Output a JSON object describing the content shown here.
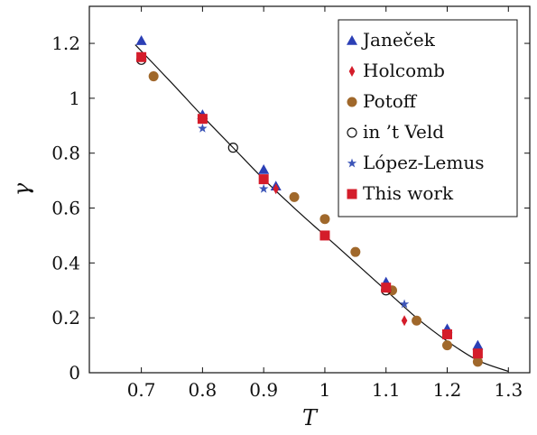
{
  "chart_data": {
    "type": "scatter",
    "xlabel": "T",
    "ylabel": "γ",
    "xlim": [
      0.615,
      1.335
    ],
    "ylim": [
      0,
      1.335
    ],
    "xticks": [
      0.7,
      0.8,
      0.9,
      1,
      1.1,
      1.2,
      1.3
    ],
    "xtick_labels": [
      "0.7",
      "0.8",
      "0.9",
      "1",
      "1.1",
      "1.2",
      "1.3"
    ],
    "yticks": [
      0,
      0.2,
      0.4,
      0.6,
      0.8,
      1,
      1.2
    ],
    "ytick_labels": [
      "0",
      "0.2",
      "0.4",
      "0.6",
      "0.8",
      "1",
      "1.2"
    ],
    "grid": false,
    "legend_position": "top-right",
    "series": [
      {
        "name": "Janeček",
        "marker": "triangle",
        "color": "#2b3fb5",
        "x": [
          0.7,
          0.8,
          0.9,
          0.92,
          1.1,
          1.2,
          1.25
        ],
        "y": [
          1.21,
          0.94,
          0.74,
          0.68,
          0.33,
          0.16,
          0.1
        ]
      },
      {
        "name": "Holcomb",
        "marker": "diamond",
        "color": "#d41c2a",
        "x": [
          0.72,
          0.92,
          1.13
        ],
        "y": [
          1.08,
          0.67,
          0.19
        ]
      },
      {
        "name": "Potoff",
        "marker": "circle-filled",
        "color": "#a0682b",
        "x": [
          0.72,
          0.95,
          1.0,
          1.05,
          1.11,
          1.15,
          1.2,
          1.25
        ],
        "y": [
          1.08,
          0.64,
          0.56,
          0.44,
          0.3,
          0.19,
          0.1,
          0.04
        ]
      },
      {
        "name": "in ’t Veld",
        "marker": "circle-open",
        "color": "#111111",
        "x": [
          0.7,
          0.85,
          1.1
        ],
        "y": [
          1.14,
          0.82,
          0.3
        ]
      },
      {
        "name": "López-Lemus",
        "marker": "star",
        "color": "#3c55b8",
        "x": [
          0.8,
          0.9,
          1.13
        ],
        "y": [
          0.89,
          0.67,
          0.25
        ]
      },
      {
        "name": "This work",
        "marker": "square",
        "color": "#d41c2a",
        "x": [
          0.7,
          0.8,
          0.9,
          1.0,
          1.1,
          1.2,
          1.25
        ],
        "y": [
          1.15,
          0.925,
          0.705,
          0.5,
          0.31,
          0.14,
          0.07
        ]
      }
    ],
    "fit_curve": {
      "x": [
        0.69,
        0.75,
        0.8,
        0.85,
        0.9,
        0.95,
        1.0,
        1.05,
        1.1,
        1.15,
        1.2,
        1.25,
        1.3
      ],
      "y": [
        1.195,
        1.055,
        0.935,
        0.82,
        0.705,
        0.6,
        0.5,
        0.4,
        0.3,
        0.2,
        0.115,
        0.045,
        0.005
      ]
    }
  }
}
